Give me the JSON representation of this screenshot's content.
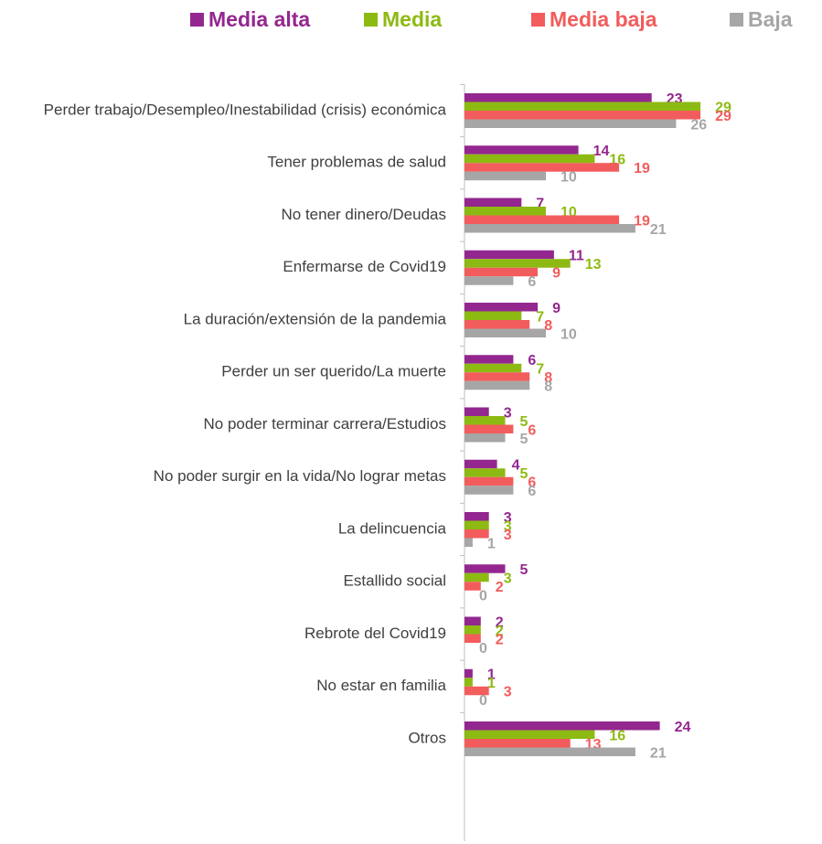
{
  "chart_data": {
    "type": "hbar",
    "categories": [
      "Perder trabajo/Desempleo/Inestabilidad (crisis) económica",
      "Tener problemas de salud",
      "No tener dinero/Deudas",
      "Enfermarse de Covid19",
      "La duración/extensión de la pandemia",
      "Perder un ser querido/La muerte",
      "No poder terminar carrera/Estudios",
      "No poder surgir en la vida/No lograr metas",
      "La delincuencia",
      "Estallido social",
      "Rebrote del Covid19",
      "No estar en familia",
      "Otros"
    ],
    "series": [
      {
        "name": "Media alta",
        "color": "#93278f",
        "values": [
          23,
          14,
          7,
          11,
          9,
          6,
          3,
          4,
          3,
          5,
          2,
          1,
          24
        ]
      },
      {
        "name": "Media",
        "color": "#8dba12",
        "values": [
          29,
          16,
          10,
          13,
          7,
          7,
          5,
          5,
          3,
          3,
          2,
          1,
          16
        ]
      },
      {
        "name": "Media baja",
        "color": "#f25c5c",
        "values": [
          29,
          19,
          19,
          9,
          8,
          8,
          6,
          6,
          3,
          2,
          2,
          3,
          13
        ]
      },
      {
        "name": "Baja",
        "color": "#a6a6a6",
        "values": [
          26,
          10,
          21,
          6,
          10,
          8,
          5,
          6,
          1,
          0,
          0,
          0,
          21
        ]
      }
    ],
    "xlim": [
      0,
      30
    ],
    "legend": "top"
  }
}
